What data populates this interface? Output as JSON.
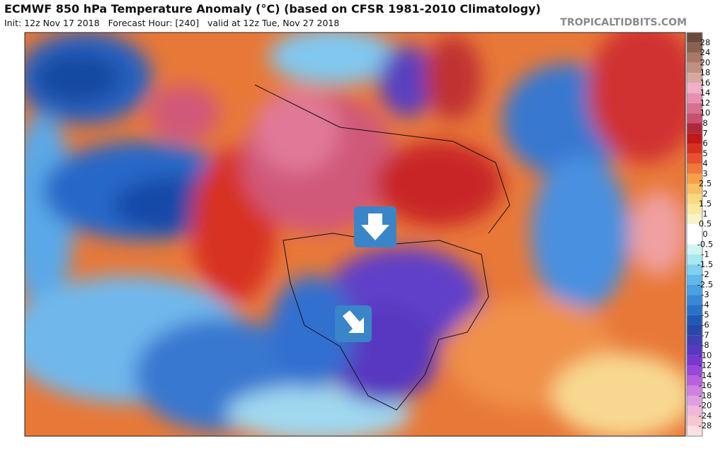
{
  "header": {
    "title": "ECMWF 850 hPa Temperature Anomaly (°C) (based on CFSR 1981-2010 Climatology)",
    "subtitle": "Init: 12z Nov 17 2018   Forecast Hour: [240]   valid at 12z Tue, Nov 27 2018",
    "watermark": "TROPICALTIDBITS.COM"
  },
  "colorbar": {
    "labels": [
      "28",
      "24",
      "20",
      "18",
      "16",
      "14",
      "12",
      "10",
      "8",
      "7",
      "6",
      "5",
      "4",
      "3",
      "2.5",
      "2",
      "1.5",
      "1",
      "0.5",
      "0",
      "-0.5",
      "-1",
      "-1.5",
      "-2",
      "-2.5",
      "-3",
      "-4",
      "-5",
      "-6",
      "-7",
      "-8",
      "-10",
      "-12",
      "-14",
      "-16",
      "-18",
      "-20",
      "-24",
      "-28"
    ],
    "colors": [
      "#6b4a3a",
      "#8a6050",
      "#a87868",
      "#c09080",
      "#d8a8a0",
      "#f0b0c8",
      "#e890b0",
      "#d87090",
      "#c85070",
      "#b02838",
      "#c01818",
      "#d83020",
      "#e85030",
      "#f07838",
      "#f8a048",
      "#f8c060",
      "#f8d880",
      "#f8e8a0",
      "#f8f4c8",
      "#ffffff",
      "#ffffff",
      "#d0f4f4",
      "#a8e8f0",
      "#80d0f0",
      "#60b8ec",
      "#48a0e0",
      "#3888d8",
      "#2870c8",
      "#2058b8",
      "#2848a8",
      "#4040b0",
      "#5838c0",
      "#7838d0",
      "#9848d8",
      "#b860e0",
      "#d080e0",
      "#e0a0e0",
      "#f0b8d8",
      "#f8c8d0",
      "#fce0e0"
    ]
  }
}
